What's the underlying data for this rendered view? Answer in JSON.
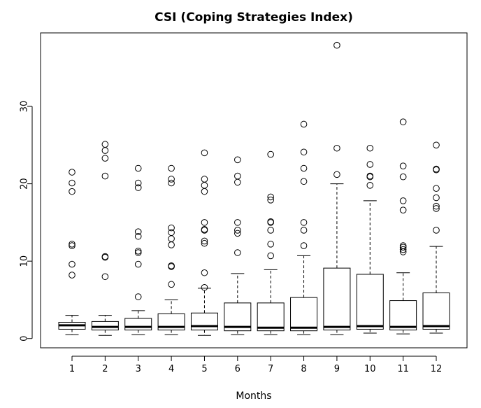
{
  "chart_data": {
    "type": "boxplot",
    "title": "CSI (Coping Strategies Index)",
    "xlabel": "Months",
    "ylabel": "",
    "categories": [
      "1",
      "2",
      "3",
      "4",
      "5",
      "6",
      "7",
      "8",
      "9",
      "10",
      "11",
      "12"
    ],
    "ylim": [
      -1.2,
      39.5
    ],
    "y_ticks": [
      0,
      10,
      20,
      30
    ],
    "grid": false,
    "legend": "none",
    "boxes": [
      {
        "category": "1",
        "whisker_low": 0.5,
        "q1": 1.2,
        "median": 1.7,
        "q3": 2.1,
        "whisker_high": 3.0,
        "outliers": [
          8.2,
          9.6,
          12.0,
          12.2,
          19.0,
          20.1,
          21.5
        ]
      },
      {
        "category": "2",
        "whisker_low": 0.4,
        "q1": 1.1,
        "median": 1.5,
        "q3": 2.2,
        "whisker_high": 3.0,
        "outliers": [
          8.0,
          10.5,
          10.6,
          21.0,
          23.3,
          24.3,
          25.1
        ]
      },
      {
        "category": "3",
        "whisker_low": 0.5,
        "q1": 1.1,
        "median": 1.5,
        "q3": 2.6,
        "whisker_high": 3.6,
        "outliers": [
          5.4,
          9.6,
          11.1,
          11.3,
          13.2,
          13.8,
          19.5,
          20.1,
          22.0
        ]
      },
      {
        "category": "4",
        "whisker_low": 0.5,
        "q1": 1.1,
        "median": 1.5,
        "q3": 3.2,
        "whisker_high": 5.0,
        "outliers": [
          7.0,
          9.3,
          9.4,
          12.1,
          12.9,
          13.7,
          14.3,
          20.1,
          20.6,
          22.0
        ]
      },
      {
        "category": "5",
        "whisker_low": 0.4,
        "q1": 1.1,
        "median": 1.6,
        "q3": 3.3,
        "whisker_high": 6.5,
        "outliers": [
          6.6,
          8.5,
          12.3,
          12.6,
          14.0,
          14.1,
          15.0,
          19.0,
          19.8,
          20.6,
          24.0
        ]
      },
      {
        "category": "6",
        "whisker_low": 0.5,
        "q1": 1.0,
        "median": 1.5,
        "q3": 4.6,
        "whisker_high": 8.4,
        "outliers": [
          11.1,
          13.6,
          14.0,
          15.0,
          20.2,
          21.0,
          23.1
        ]
      },
      {
        "category": "7",
        "whisker_low": 0.5,
        "q1": 1.0,
        "median": 1.4,
        "q3": 4.6,
        "whisker_high": 8.9,
        "outliers": [
          10.7,
          12.2,
          14.0,
          15.0,
          15.1,
          17.9,
          18.3,
          23.8
        ]
      },
      {
        "category": "8",
        "whisker_low": 0.5,
        "q1": 1.0,
        "median": 1.4,
        "q3": 5.3,
        "whisker_high": 10.7,
        "outliers": [
          12.0,
          14.0,
          15.0,
          20.3,
          22.0,
          24.1,
          27.7
        ]
      },
      {
        "category": "9",
        "whisker_low": 0.5,
        "q1": 1.1,
        "median": 1.5,
        "q3": 9.1,
        "whisker_high": 20.0,
        "outliers": [
          21.2,
          24.6,
          37.9
        ]
      },
      {
        "category": "10",
        "whisker_low": 0.7,
        "q1": 1.2,
        "median": 1.6,
        "q3": 8.3,
        "whisker_high": 17.8,
        "outliers": [
          19.8,
          20.9,
          21.0,
          22.5,
          24.6
        ]
      },
      {
        "category": "11",
        "whisker_low": 0.6,
        "q1": 1.1,
        "median": 1.5,
        "q3": 4.9,
        "whisker_high": 8.5,
        "outliers": [
          11.2,
          11.5,
          11.8,
          12.0,
          16.6,
          17.8,
          20.9,
          22.3,
          28.0
        ]
      },
      {
        "category": "12",
        "whisker_low": 0.7,
        "q1": 1.2,
        "median": 1.6,
        "q3": 5.9,
        "whisker_high": 11.9,
        "outliers": [
          14.0,
          16.8,
          17.1,
          18.2,
          19.4,
          21.8,
          21.9,
          25.0
        ]
      }
    ]
  }
}
